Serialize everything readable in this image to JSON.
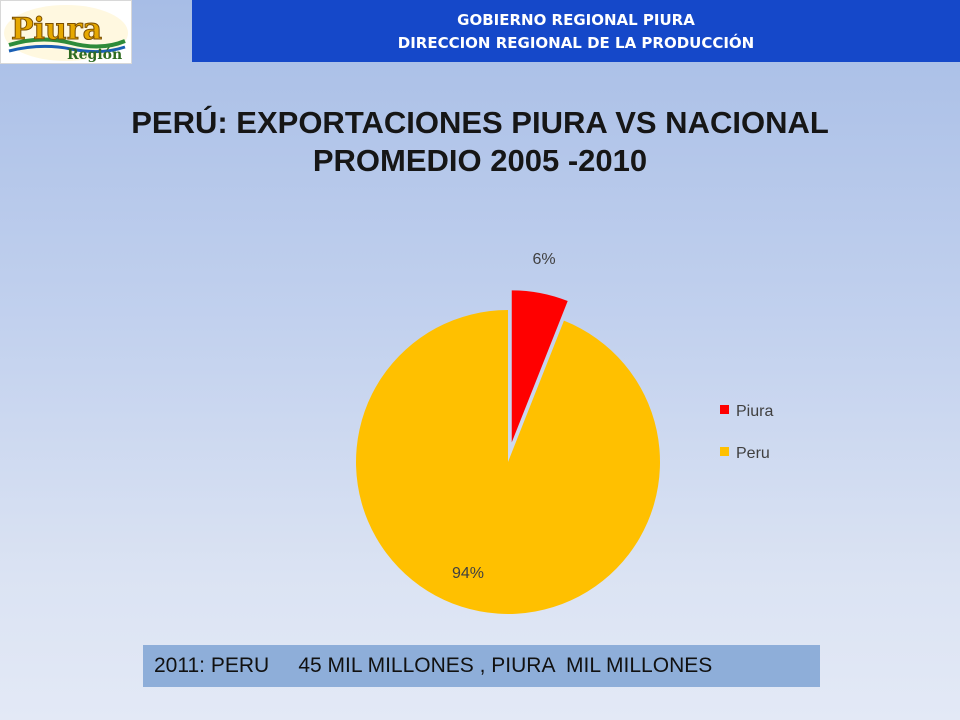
{
  "logo": {
    "brand": "Piura",
    "subtitle": "Región"
  },
  "header": {
    "line1": "GOBIERNO REGIONAL PIURA",
    "line2": "DIRECCION REGIONAL DE LA PRODUCCIÓN"
  },
  "title": {
    "line1": "PERÚ: EXPORTACIONES PIURA VS NACIONAL",
    "line2": "PROMEDIO 2005 -2010"
  },
  "chart_data": {
    "type": "pie",
    "title": "PERÚ: EXPORTACIONES PIURA VS NACIONAL PROMEDIO 2005 -2010",
    "slices": [
      {
        "label": "Piura",
        "value": 6,
        "display": "6%",
        "color": "#ff0000",
        "exploded": true
      },
      {
        "label": "Peru",
        "value": 94,
        "display": "94%",
        "color": "#ffc000",
        "exploded": false
      }
    ],
    "legend": {
      "placement": "right",
      "entries": [
        "Piura",
        "Peru"
      ]
    }
  },
  "footer": {
    "text": "2011: PERU     45 MIL MILLONES , PIURA  MIL MILLONES"
  }
}
